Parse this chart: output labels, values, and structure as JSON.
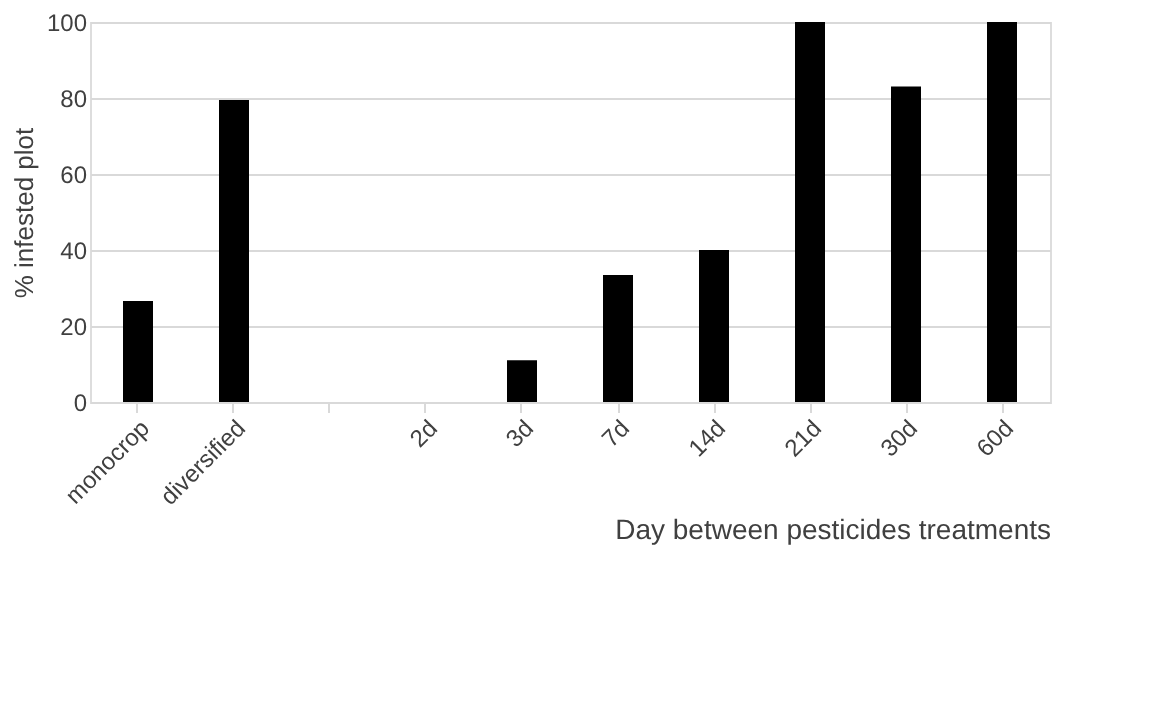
{
  "chart_data": {
    "type": "bar",
    "xlabel": "Day between pesticides treatments",
    "ylabel": "% infested plot",
    "categories": [
      "monocrop",
      "diversified",
      null,
      "2d",
      "3d",
      "7d",
      "14d",
      "21d",
      "30d",
      "60d"
    ],
    "values": [
      26.6,
      79.5,
      null,
      0,
      11,
      33.4,
      40,
      100,
      83,
      100
    ],
    "color": "#000000",
    "ylim": [
      0,
      100
    ],
    "yticks": [
      0,
      20,
      40,
      60,
      80,
      100
    ],
    "grid": "y"
  }
}
